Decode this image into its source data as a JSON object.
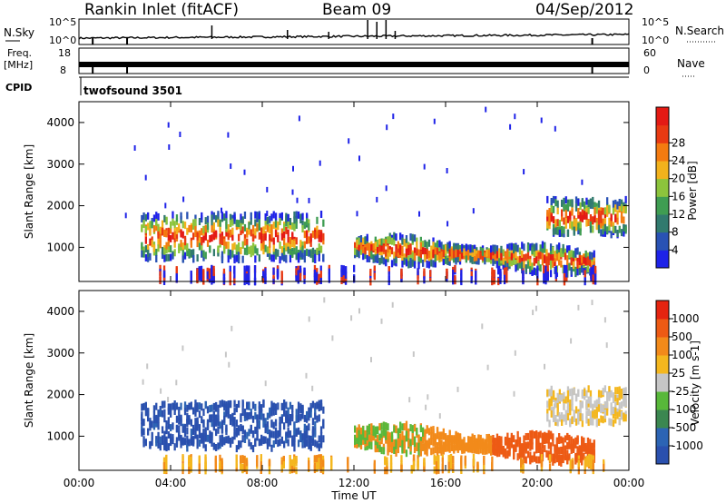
{
  "header": {
    "station": "Rankin Inlet (fitACF)",
    "beam": "Beam 09",
    "date": "04/Sep/2012"
  },
  "strips": {
    "nsky_label": "N.Sky",
    "nsearch_label": "N.Search",
    "nsky_ticks": [
      "10^5",
      "10^0"
    ],
    "nsearch_ticks": [
      "10^5",
      "10^0"
    ],
    "freq_label_line1": "Freq.",
    "freq_label_line2": "[MHz]",
    "freq_ticks": [
      "18",
      "8"
    ],
    "nave_label": "Nave",
    "nave_ticks": [
      "60",
      "0"
    ],
    "cpid_label": "CPID",
    "cpid_value": "twofsound 3501"
  },
  "x_ticks": [
    "00:00",
    "04:00",
    "08:00",
    "12:00",
    "16:00",
    "20:00",
    "00:00"
  ],
  "x_label": "Time UT",
  "chart_data": [
    {
      "type": "heatmap",
      "panel": "power",
      "ylabel": "Slant Range [km]",
      "ylim": [
        180,
        4500
      ],
      "xlim": [
        "00:00",
        "24:00"
      ],
      "y_ticks": [
        1000,
        2000,
        3000,
        4000
      ],
      "colorbar": {
        "label": "Power [dB]",
        "ticks": [
          "4",
          "8",
          "12",
          "16",
          "20",
          "24",
          "28"
        ],
        "colors": [
          "#1e22e8",
          "#2952b4",
          "#317a6e",
          "#3f9d52",
          "#8cc43c",
          "#f2b21c",
          "#f47b10",
          "#e93a12",
          "#e41a14"
        ]
      },
      "regions": [
        {
          "t": [
            2.7,
            10.8
          ],
          "r": [
            700,
            1800
          ],
          "note": "backscatter"
        },
        {
          "t": [
            12.0,
            22.5
          ],
          "r": [
            450,
            1400
          ],
          "note": "backscatter"
        },
        {
          "t": [
            20.4,
            23.9
          ],
          "r": [
            1300,
            2150
          ],
          "note": "backscatter"
        },
        {
          "t": [
            3.5,
            23.0
          ],
          "r": [
            180,
            550
          ],
          "note": "ground scatter"
        }
      ]
    },
    {
      "type": "heatmap",
      "panel": "velocity",
      "ylabel": "Slant Range [km]",
      "ylim": [
        180,
        4500
      ],
      "xlim": [
        "00:00",
        "24:00"
      ],
      "y_ticks": [
        1000,
        2000,
        3000,
        4000
      ],
      "colorbar": {
        "label": "Velocity [m s-1]",
        "ticks": [
          "1000",
          "500",
          "100",
          "25",
          "-25",
          "-100",
          "-500",
          "-1000"
        ],
        "colors": [
          "#2a50ae",
          "#2c64b4",
          "#3b8750",
          "#58b83a",
          "#c6c6c6",
          "#f4b71e",
          "#f28a1a",
          "#ed5a14",
          "#e52410"
        ]
      }
    }
  ]
}
